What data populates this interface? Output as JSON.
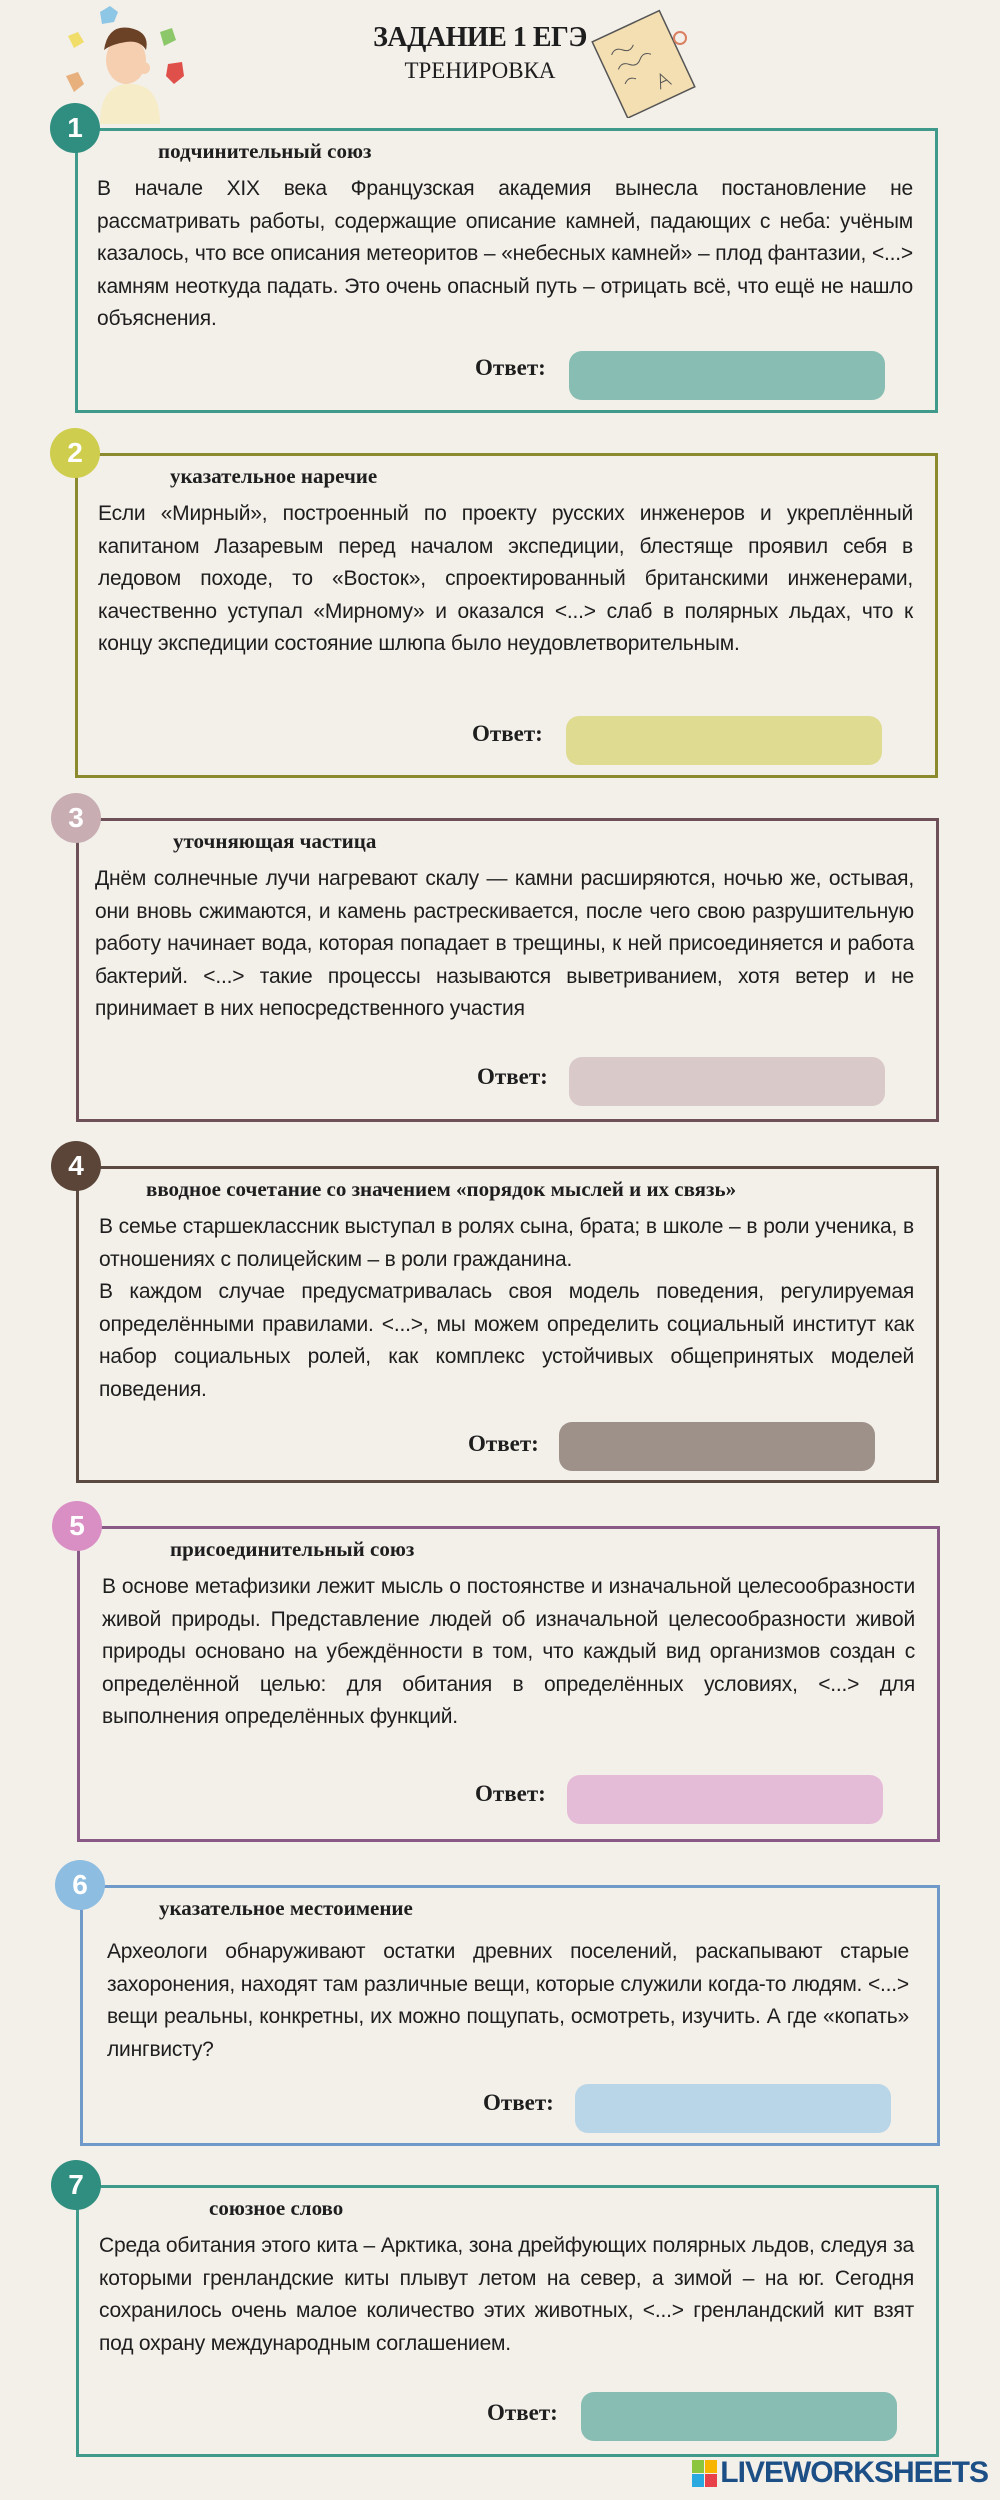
{
  "header": {
    "title": "ЗАДАНИЕ 1 ЕГЭ",
    "subtitle": "ТРЕНИРОВКА"
  },
  "answer_label": "Ответ:",
  "cards": [
    {
      "number": "1",
      "title": "подчинительный союз",
      "border": "#3f9a8b",
      "circle": "#2f8e80",
      "answer_color": "#88bdb3",
      "paragraphs": [
        "В начале XIX века Французская академия вынесла постановление не рассматривать работы, содержащие описание камней, падающих с неба: учёным казалось, что все описания метеоритов – «небесных камней» – плод фантазии, <...> камням неоткуда падать. Это очень опасный путь – отрицать всё, что ещё не нашло объяснения."
      ]
    },
    {
      "number": "2",
      "title": "указательное наречие",
      "border": "#8c8a2e",
      "circle": "#cfcd4e",
      "answer_color": "#dfdc91",
      "paragraphs": [
        "Если «Мирный», построенный по проекту русских инженеров и укреплённый капитаном Лазаревым перед началом экспедиции, блестяще проявил себя в ледовом походе, то «Восток», спроектированный британскими инженерами, качественно уступал «Мирному» и оказался <...> слаб в полярных льдах, что к концу экспедиции состояние шлюпа было неудовлетворительным."
      ]
    },
    {
      "number": "3",
      "title": "уточняющая частица",
      "border": "#6e5158",
      "circle": "#c8adb3",
      "answer_color": "#d9c9c9",
      "paragraphs": [
        "Днём солнечные лучи нагревают скалу — камни расширяются, ночью же, остывая, они вновь сжимаются, и камень растрескивается, после чего свою разрушительную работу начинает вода, которая попадает в трещины, к ней присоединяется и работа бактерий. <...> такие процессы называются выветриванием, хотя ветер и не принимает в них непосредственного участия"
      ]
    },
    {
      "number": "4",
      "title": "вводное сочетание со значением «порядок мыслей и их связь»",
      "border": "#5a4a42",
      "circle": "#5a4538",
      "answer_color": "#9e9189",
      "paragraphs": [
        "В семье старшеклассник выступал в ролях сына, брата; в школе – в роли ученика, в отношениях с полицейским – в роли гражданина.",
        "В каждом случае предусматривалась своя модель поведения, регулируемая определёнными правилами. <...>, мы можем определить социальный институт как набор социальных ролей, как комплекс устойчивых общепринятых моделей поведения."
      ]
    },
    {
      "number": "5",
      "title": "присоединительный союз",
      "border": "#8a5a86",
      "circle": "#d98fc4",
      "answer_color": "#e5bcd7",
      "paragraphs": [
        "В основе метафизики лежит мысль о постоянстве и изначальной целесообразности живой природы. Представление людей об изначальной целесообразности живой природы основано на убеждённости в том, что каждый вид организмов создан с определённой целью: для обитания в определённых условиях, <...> для выполнения определённых функций."
      ]
    },
    {
      "number": "6",
      "title": "указательное местоимение",
      "border": "#6f99c8",
      "circle": "#8dbde1",
      "answer_color": "#b9d5e8",
      "paragraphs": [
        "Археологи обнаруживают остатки древних поселений, раскапывают старые захоронения, находят там различные вещи, которые служили когда-то людям. <...> вещи реальны, конкретны, их можно пощупать, осмотреть, изучить. А где «копать» лингвисту?"
      ]
    },
    {
      "number": "7",
      "title": "союзное слово",
      "border": "#3f9a8b",
      "circle": "#2f8e80",
      "answer_color": "#88bdb3",
      "paragraphs": [
        "Среда обитания этого кита – Арктика, зона дрейфующих полярных льдов, следуя за которыми гренландские киты плывут летом на север, а зимой – на юг. Сегодня сохранилось очень малое количество этих животных, <...> гренландский кит взят под охрану международным соглашением."
      ]
    }
  ],
  "footer": {
    "logo": "LIVEWORKSHEETS"
  }
}
